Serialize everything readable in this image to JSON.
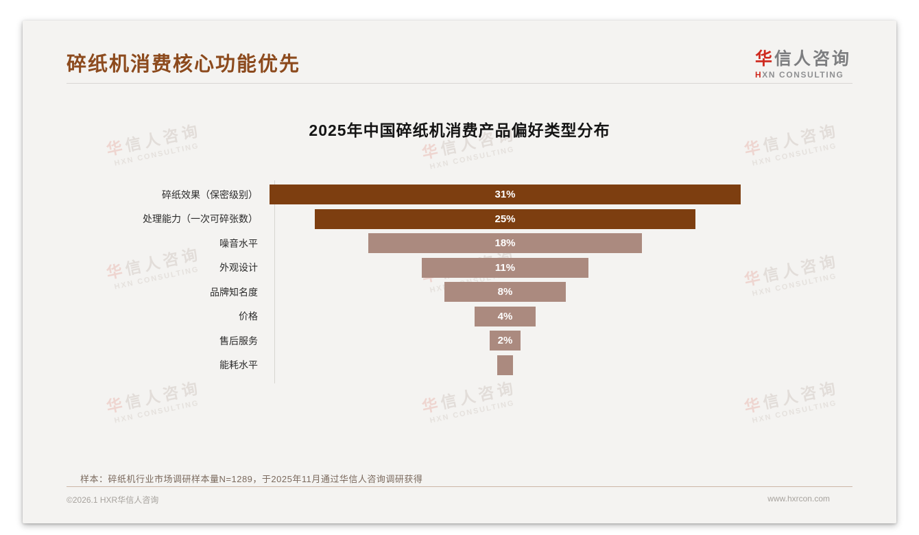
{
  "page": {
    "header": {
      "title": "碎纸机消费核心功能优先"
    },
    "logo": {
      "cn_accent": "华",
      "cn_rest": "信人咨询",
      "en_accent": "H",
      "en_rest": "XN CONSULTING"
    },
    "watermark": {
      "cn": "华信人咨询",
      "en": "HXN CONSULTING"
    },
    "footnote": "样本：碎纸机行业市场调研样本量N=1289，于2025年11月通过华信人咨询调研获得",
    "footer": {
      "left": "©2026.1 HXR华信人咨询",
      "right": "www.hxrcon.com"
    }
  },
  "chart_data": {
    "type": "bar",
    "subtype": "centered-funnel-horizontal",
    "title": "2025年中国碎纸机消费产品偏好类型分布",
    "categories": [
      "碎纸效果（保密级别）",
      "处理能力（一次可碎张数）",
      "噪音水平",
      "外观设计",
      "品牌知名度",
      "价格",
      "售后服务",
      "能耗水平"
    ],
    "values": [
      31,
      25,
      18,
      11,
      8,
      4,
      2,
      1
    ],
    "value_labels": [
      "31%",
      "25%",
      "18%",
      "11%",
      "8%",
      "4%",
      "2%",
      ""
    ],
    "max_value": 31,
    "unit": "%",
    "series_colors": [
      "#7d3e10",
      "#7d3e10",
      "#ab8a7f",
      "#ab8a7f",
      "#ab8a7f",
      "#ab8a7f",
      "#ab8a7f",
      "#ab8a7f"
    ],
    "colors": {
      "primary": "#7d3e10",
      "secondary": "#ab8a7f"
    },
    "xlabel": "",
    "ylabel": "",
    "legend": null,
    "grid": false,
    "value_label_position": "center",
    "orientation": "horizontal"
  }
}
